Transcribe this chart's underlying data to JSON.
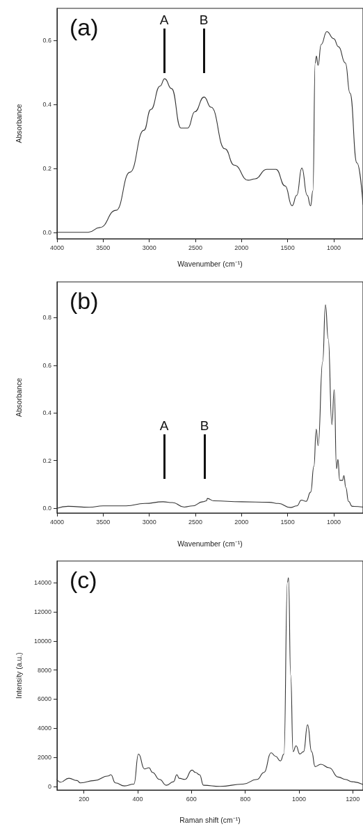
{
  "chart_data": [
    {
      "type": "line",
      "xlabel": "Wavenumber (cm⁻¹)",
      "ylabel": "Absorbance",
      "color": "#333333",
      "marker": "none",
      "line_style": "solid",
      "xlim": [
        4000,
        683
      ],
      "xticks": [
        4000,
        3500,
        3000,
        2500,
        2000,
        1500,
        1000
      ],
      "ylim": [
        -0.02,
        0.7
      ],
      "yticks": [
        {
          "value": 0,
          "label": "0.0"
        },
        {
          "value": 0.2,
          "label": "0.2"
        },
        {
          "value": 0.4,
          "label": "0.4"
        },
        {
          "value": 0.6,
          "label": "0.6"
        }
      ],
      "x": [
        4000,
        3661,
        3536,
        3360,
        3209,
        3058,
        2983,
        2883,
        2833,
        2758,
        2657,
        2582,
        2506,
        2406,
        2330,
        2180,
        2079,
        1929,
        1853,
        1728,
        1627,
        1527,
        1452,
        1401,
        1346,
        1288,
        1251,
        1226,
        1201,
        1188,
        1170,
        1137,
        1075,
        1000,
        949,
        874,
        824,
        749,
        683
      ],
      "values": [
        0,
        0,
        0.015,
        0.069,
        0.188,
        0.319,
        0.384,
        0.457,
        0.48,
        0.449,
        0.326,
        0.326,
        0.377,
        0.423,
        0.391,
        0.261,
        0.21,
        0.163,
        0.167,
        0.197,
        0.197,
        0.145,
        0.083,
        0.116,
        0.201,
        0.116,
        0.083,
        0.13,
        0.529,
        0.551,
        0.522,
        0.587,
        0.627,
        0.605,
        0.58,
        0.529,
        0.435,
        0.217,
        0.087
      ],
      "annotations": [
        "(a)",
        "A",
        "B"
      ]
    },
    {
      "type": "line",
      "xlabel": "Wavenumber (cm⁻¹)",
      "ylabel": "Absorbance",
      "color": "#333333",
      "marker": "none",
      "line_style": "solid",
      "xlim": [
        4000,
        683
      ],
      "xticks": [
        4000,
        3500,
        3000,
        2500,
        2000,
        1500,
        1000
      ],
      "ylim": [
        -0.02,
        0.95
      ],
      "yticks": [
        {
          "value": 0,
          "label": "0.0"
        },
        {
          "value": 0.2,
          "label": "0.2"
        },
        {
          "value": 0.4,
          "label": "0.4"
        },
        {
          "value": 0.6,
          "label": "0.6"
        },
        {
          "value": 0.8,
          "label": "0.8"
        }
      ],
      "x": [
        4000,
        3880,
        3650,
        3500,
        3250,
        3050,
        2850,
        2750,
        2620,
        2530,
        2420,
        2380,
        2370,
        2300,
        2000,
        1700,
        1600,
        1470,
        1400,
        1350,
        1300,
        1250,
        1215,
        1190,
        1170,
        1120,
        1090,
        1060,
        1020,
        995,
        970,
        955,
        935,
        905,
        890,
        870,
        840,
        800,
        683
      ],
      "values": [
        0,
        0.008,
        0.004,
        0.01,
        0.01,
        0.02,
        0.027,
        0.024,
        0.005,
        0.01,
        0.027,
        0.031,
        0.041,
        0.031,
        0.027,
        0.025,
        0.02,
        0.003,
        0.01,
        0.034,
        0.029,
        0.068,
        0.176,
        0.332,
        0.263,
        0.615,
        0.854,
        0.712,
        0.351,
        0.498,
        0.166,
        0.205,
        0.117,
        0.117,
        0.137,
        0.088,
        0.029,
        0.008,
        0.005
      ],
      "annotations": [
        "(b)",
        "A",
        "B"
      ]
    },
    {
      "type": "line",
      "xlabel": "Raman shift (cm⁻¹)",
      "ylabel": "Intensity (a.u.)",
      "color": "#333333",
      "marker": "none",
      "line_style": "solid",
      "xlim": [
        100,
        1238
      ],
      "xticks": [
        200,
        400,
        600,
        800,
        1000,
        1200
      ],
      "ylim": [
        -250,
        15500
      ],
      "yticks": [
        0,
        2000,
        4000,
        6000,
        8000,
        10000,
        12000,
        14000
      ],
      "x": [
        100,
        113,
        144,
        174,
        187,
        239,
        291,
        300,
        317,
        351,
        386,
        403,
        425,
        442,
        455,
        481,
        507,
        533,
        546,
        554,
        576,
        602,
        615,
        630,
        645,
        706,
        792,
        844,
        870,
        896,
        913,
        931,
        944,
        957,
        961,
        969,
        978,
        989,
        1003,
        1017,
        1032,
        1047,
        1060,
        1081,
        1112,
        1146,
        1172,
        1198,
        1238
      ],
      "values": [
        480,
        290,
        560,
        400,
        240,
        400,
        720,
        800,
        240,
        30,
        160,
        2230,
        1200,
        1280,
        960,
        480,
        80,
        320,
        800,
        560,
        480,
        1120,
        960,
        800,
        80,
        0,
        160,
        480,
        960,
        2310,
        2070,
        1750,
        2230,
        14040,
        14350,
        7660,
        2390,
        2790,
        2230,
        2390,
        4230,
        2390,
        1360,
        1520,
        1280,
        640,
        480,
        320,
        130
      ],
      "annotations": [
        "(c)"
      ]
    }
  ]
}
